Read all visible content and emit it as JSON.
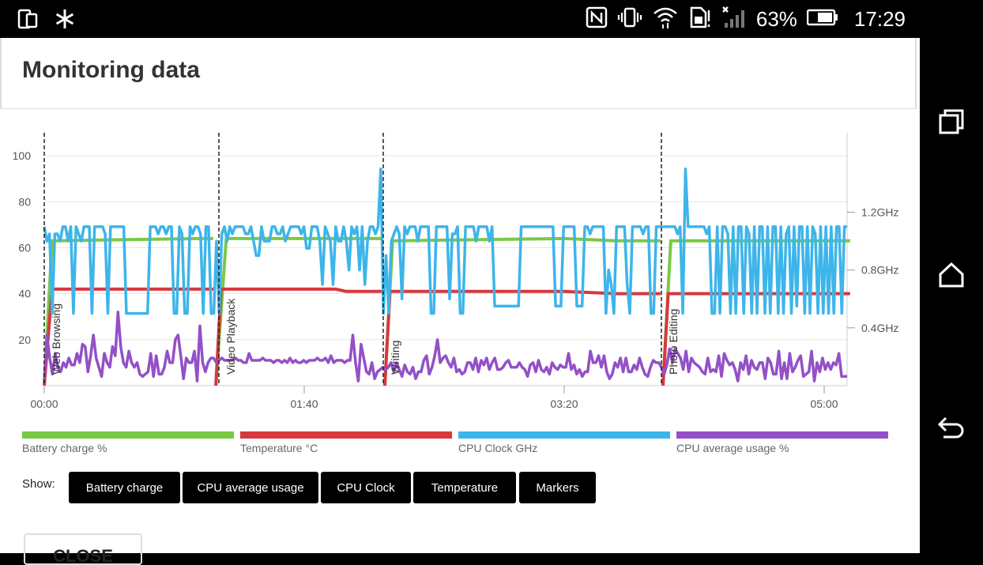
{
  "status_bar": {
    "battery_percent": "63%",
    "time": "17:29"
  },
  "header": {
    "title": "Monitoring data"
  },
  "chart_data": {
    "type": "line",
    "x_ticks": [
      "00:00",
      "01:40",
      "03:20",
      "05:00"
    ],
    "y_left_ticks": [
      "100",
      "80",
      "60",
      "40",
      "20"
    ],
    "y_right_ticks": [
      "1.2GHz",
      "0.8GHz",
      "0.4GHz"
    ],
    "ylim": [
      0,
      110
    ],
    "markers": [
      "Web Browsing",
      "Video Playback",
      "Writing",
      "Photo Editing"
    ],
    "series": [
      {
        "name": "Battery charge %",
        "color": "#7ac943",
        "segments": [
          [
            [
              0,
              0
            ],
            [
              3,
              63
            ],
            [
              60,
              64
            ],
            [
              65,
              64
            ]
          ],
          [
            [
              66,
              0
            ],
            [
              70,
              64
            ],
            [
              130,
              64
            ]
          ],
          [
            [
              131,
              0
            ],
            [
              134,
              63
            ],
            [
              200,
              64
            ],
            [
              220,
              63
            ],
            [
              237,
              63
            ]
          ],
          [
            [
              238,
              0
            ],
            [
              241,
              63
            ],
            [
              310,
              63
            ]
          ]
        ]
      },
      {
        "name": "Temperature °C",
        "color": "#d7383d",
        "segments": [
          [
            [
              0,
              0
            ],
            [
              3,
              42
            ],
            [
              60,
              42
            ],
            [
              65,
              42
            ]
          ],
          [
            [
              66,
              0
            ],
            [
              68,
              42
            ],
            [
              112,
              42
            ],
            [
              116,
              41
            ],
            [
              130,
              41
            ]
          ],
          [
            [
              131,
              0
            ],
            [
              133,
              41
            ],
            [
              200,
              41
            ],
            [
              220,
              40
            ],
            [
              237,
              40
            ]
          ],
          [
            [
              238,
              0
            ],
            [
              240,
              40
            ],
            [
              310,
              40
            ]
          ]
        ]
      },
      {
        "name": "CPU Clock GHz",
        "color": "#3db5ea",
        "values": [
          1.1,
          1.0,
          1.05,
          0.5,
          1.05,
          1.05,
          1.0,
          1.1,
          1.1,
          1.0,
          1.1,
          0.5,
          1.1,
          1.05,
          1.0,
          1.1,
          1.1,
          1.1,
          0.5,
          1.1,
          1.1,
          1.1,
          1.1,
          1.05,
          0.5,
          1.1,
          1.1,
          1.1,
          1.1,
          1.1,
          1.1,
          0.5,
          0.5,
          0.5,
          0.5,
          0.5,
          0.5,
          0.5,
          0.5,
          0.5,
          1.1,
          1.1,
          1.1,
          1.05,
          1.1,
          1.1,
          1.05,
          1.1,
          1.1,
          0.5,
          0.5,
          1.1,
          1.05,
          0.5,
          0.5,
          1.1,
          1.05,
          1.1,
          1.1,
          1.05,
          0.5,
          1.1,
          1.1,
          0.5,
          0.5,
          1.0,
          0.5,
          1.05,
          1.1,
          1.0,
          1.1,
          1.05,
          1.1,
          1.1,
          1.1,
          1.1,
          1.05,
          1.05,
          1.1,
          1.0,
          0.9,
          0.9,
          1.1,
          1.0,
          1.0,
          1.0,
          1.1,
          1.1,
          1.05,
          1.05,
          1.1,
          1.0,
          1.05,
          1.1,
          1.1,
          1.1,
          1.1,
          1.05,
          1.1,
          0.95,
          0.95,
          1.1,
          1.1,
          1.1,
          1.0,
          0.7,
          1.1,
          1.05,
          1.0,
          0.7,
          1.1,
          1.0,
          1.0,
          1.1,
          1.0,
          0.8,
          1.1,
          1.05,
          1.1,
          0.8,
          1.1,
          0.7,
          1.0,
          1.1,
          1.1,
          1.05,
          1.1,
          1.5,
          0.5,
          0.9,
          0.5,
          1.0,
          1.05,
          1.1,
          1.05,
          0.6,
          1.1,
          1.05,
          1.1,
          1.1,
          1.1,
          1.0,
          1.1,
          1.1,
          1.1,
          1.1,
          0.5,
          0.5,
          1.1,
          1.1,
          1.1,
          1.1,
          1.1,
          0.6,
          1.05,
          1.05,
          1.1,
          0.5,
          0.5,
          1.1,
          1.1,
          1.1,
          1.1,
          1.0,
          1.1,
          1.1,
          1.1,
          1.1,
          1.0,
          1.1,
          0.55,
          0.55,
          0.55,
          0.55,
          0.55,
          0.55,
          0.55,
          0.55,
          0.55,
          0.55,
          1.1,
          1.1,
          1.1,
          1.1,
          1.1,
          1.1,
          1.1,
          1.1,
          1.1,
          1.1,
          1.1,
          1.1,
          1.1,
          0.55,
          0.55,
          0.55,
          1.1,
          1.1,
          1.1,
          1.1,
          1.1,
          0.55,
          0.55,
          0.55,
          1.1,
          1.1,
          1.05,
          1.1,
          1.1,
          1.1,
          1.1,
          1.1,
          0.5,
          0.8,
          0.7,
          0.5,
          1.1,
          1.1,
          1.1,
          1.1,
          0.7,
          0.5,
          1.1,
          1.1,
          1.1,
          1.1,
          1.05,
          1.1,
          1.1,
          0.5,
          0.5,
          1.1,
          1.1,
          1.1,
          1.1,
          1.1,
          1.1,
          1.1,
          1.1,
          1.05,
          1.1,
          0.5,
          1.5,
          1.1,
          1.1,
          1.1,
          1.1,
          1.1,
          1.1,
          1.1,
          1.05,
          1.1,
          0.5,
          0.5,
          1.1,
          0.5,
          1.1,
          1.1,
          1.05,
          0.5,
          1.1,
          0.5,
          1.1,
          1.1,
          0.5,
          1.1,
          1.05,
          0.5,
          1.1,
          0.5,
          1.1,
          1.1,
          0.5,
          1.1,
          0.5,
          1.1,
          1.1,
          0.5,
          1.1,
          0.5,
          1.05,
          1.1,
          0.5,
          1.1,
          0.55,
          1.1,
          1.1,
          0.5,
          1.1,
          0.5,
          1.1,
          1.05,
          0.5,
          1.1,
          0.5,
          1.1,
          0.5,
          1.1,
          0.5,
          1.1,
          1.1,
          0.5,
          1.1,
          1.1
        ]
      },
      {
        "name": "CPU average usage %",
        "color": "#9350c7",
        "values": [
          2,
          22,
          12,
          5,
          14,
          8,
          6,
          10,
          8,
          12,
          9,
          9,
          14,
          10,
          18,
          17,
          6,
          13,
          22,
          12,
          8,
          4,
          14,
          10,
          8,
          17,
          13,
          32,
          17,
          10,
          8,
          15,
          10,
          8,
          10,
          5,
          4,
          5,
          6,
          14,
          4,
          13,
          5,
          5,
          8,
          15,
          10,
          10,
          20,
          22,
          13,
          3,
          12,
          10,
          10,
          15,
          2,
          26,
          10,
          6,
          10,
          12,
          12,
          10,
          11,
          12,
          11,
          11,
          11,
          11,
          12,
          11,
          11,
          10,
          10,
          14,
          11,
          11,
          11,
          11,
          12,
          11,
          11,
          11,
          10,
          11,
          11,
          10,
          11,
          10,
          12,
          10,
          11,
          10,
          10,
          11,
          10,
          11,
          11,
          11,
          12,
          11,
          11,
          12,
          10,
          13,
          10,
          11,
          11,
          11,
          10,
          11,
          11,
          22,
          10,
          2,
          18,
          12,
          6,
          5,
          10,
          3,
          6,
          7,
          8,
          7,
          8,
          10,
          6,
          10,
          7,
          4,
          9,
          6,
          5,
          8,
          3,
          6,
          6,
          11,
          13,
          5,
          8,
          13,
          20,
          10,
          12,
          13,
          10,
          8,
          12,
          6,
          7,
          5,
          6,
          10,
          10,
          7,
          12,
          6,
          11,
          9,
          12,
          7,
          10,
          12,
          7,
          7,
          8,
          10,
          11,
          8,
          8,
          8,
          10,
          8,
          7,
          4,
          9,
          10,
          6,
          11,
          7,
          6,
          8,
          5,
          10,
          8,
          7,
          9,
          8,
          8,
          14,
          7,
          9,
          5,
          7,
          4,
          6,
          6,
          15,
          10,
          10,
          13,
          8,
          13,
          6,
          3,
          5,
          10,
          8,
          12,
          6,
          12,
          6,
          6,
          9,
          7,
          12,
          8,
          5,
          4,
          8,
          11,
          10,
          10,
          8,
          5,
          9,
          16,
          10,
          16,
          14,
          12,
          7,
          15,
          6,
          12,
          10,
          9,
          8,
          6,
          5,
          12,
          6,
          7,
          6,
          13,
          4,
          14,
          11,
          9,
          10,
          7,
          2,
          10,
          7,
          13,
          5,
          11,
          8,
          7,
          10,
          10,
          3,
          12,
          10,
          5,
          5,
          15,
          3,
          10,
          3,
          14,
          6,
          8,
          11,
          13,
          4,
          5,
          6,
          15,
          2,
          10,
          6,
          12,
          7,
          10,
          7,
          10,
          9,
          14,
          4,
          4,
          4
        ]
      }
    ]
  },
  "legend": [
    {
      "label": "Battery charge %",
      "color": "#7ac943"
    },
    {
      "label": "Temperature °C",
      "color": "#d7383d"
    },
    {
      "label": "CPU Clock GHz",
      "color": "#3db5ea"
    },
    {
      "label": "CPU average usage %",
      "color": "#9350c7"
    }
  ],
  "show": {
    "label": "Show:",
    "buttons": [
      "Battery charge",
      "CPU average usage",
      "CPU Clock",
      "Temperature",
      "Markers"
    ]
  },
  "close_label": "CLOSE"
}
